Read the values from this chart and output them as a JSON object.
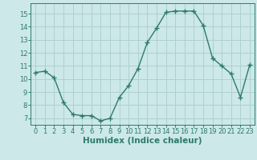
{
  "x": [
    0,
    1,
    2,
    3,
    4,
    5,
    6,
    7,
    8,
    9,
    10,
    11,
    12,
    13,
    14,
    15,
    16,
    17,
    18,
    19,
    20,
    21,
    22,
    23
  ],
  "y": [
    10.5,
    10.6,
    10.1,
    8.2,
    7.3,
    7.2,
    7.2,
    6.8,
    7.0,
    8.6,
    9.5,
    10.8,
    12.8,
    13.9,
    15.1,
    15.2,
    15.2,
    15.2,
    14.1,
    11.6,
    11.0,
    10.4,
    8.6,
    11.1
  ],
  "line_color": "#2d7a6e",
  "marker": "+",
  "marker_size": 4,
  "bg_color": "#cce8e8",
  "grid_color": "#b0d0d0",
  "xlabel": "Humidex (Indice chaleur)",
  "ylim": [
    6.5,
    15.8
  ],
  "xlim": [
    -0.5,
    23.5
  ],
  "yticks": [
    7,
    8,
    9,
    10,
    11,
    12,
    13,
    14,
    15
  ],
  "xticks": [
    0,
    1,
    2,
    3,
    4,
    5,
    6,
    7,
    8,
    9,
    10,
    11,
    12,
    13,
    14,
    15,
    16,
    17,
    18,
    19,
    20,
    21,
    22,
    23
  ],
  "tick_fontsize": 6,
  "xlabel_fontsize": 7.5,
  "line_width": 1.0
}
